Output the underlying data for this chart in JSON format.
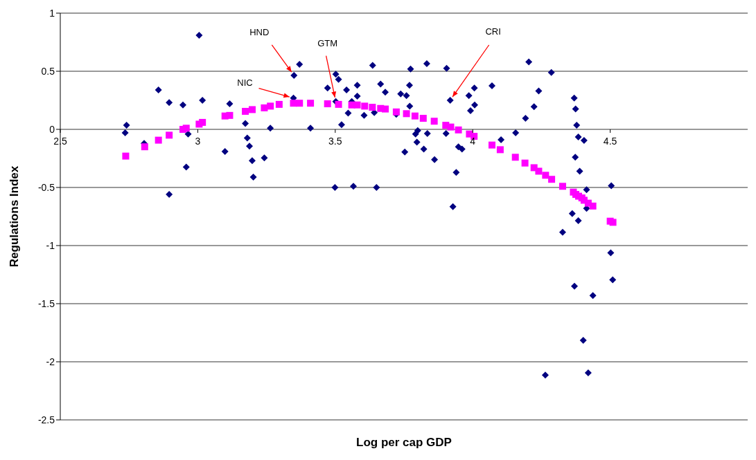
{
  "chart_data": {
    "type": "scatter",
    "xlabel": "Log per cap GDP",
    "ylabel": "Regulations Index",
    "xlim": [
      2.5,
      5
    ],
    "xticks": [
      2.5,
      3,
      3.5,
      4,
      4.5
    ],
    "ylim": [
      -2.5,
      1
    ],
    "yticks": [
      -2.5,
      -2,
      -1.5,
      -1,
      -0.5,
      0,
      0.5,
      1
    ],
    "grid": "y",
    "legend": false,
    "series": [
      {
        "marker": "diamond",
        "color": "#000080",
        "x": [
          2.736,
          2.741,
          2.805,
          2.857,
          2.896,
          2.896,
          2.946,
          2.958,
          2.965,
          3.005,
          3.017,
          3.099,
          3.116,
          3.173,
          3.18,
          3.188,
          3.198,
          3.202,
          3.242,
          3.264,
          3.35,
          3.37,
          3.348,
          3.41,
          3.636,
          3.502,
          3.512,
          3.472,
          3.541,
          3.58,
          3.58,
          3.665,
          3.682,
          3.502,
          3.56,
          3.547,
          3.605,
          3.642,
          3.523,
          3.774,
          3.833,
          3.905,
          3.77,
          3.738,
          3.759,
          3.771,
          3.722,
          3.918,
          3.986,
          4.006,
          3.992,
          4.007,
          4.07,
          4.204,
          3.8,
          3.792,
          3.835,
          3.903,
          3.797,
          3.822,
          3.753,
          3.861,
          3.948,
          3.961,
          3.94,
          3.499,
          3.566,
          3.65,
          4.103,
          4.156,
          4.192,
          4.286,
          4.24,
          4.223,
          4.369,
          4.374,
          4.378,
          4.384,
          4.405,
          4.373,
          4.389,
          3.928,
          4.414,
          4.414,
          4.504,
          4.362,
          4.384,
          4.327,
          4.502,
          4.509,
          4.37,
          4.437,
          4.402,
          4.264,
          4.42
        ],
        "values": [
          -0.03,
          0.035,
          -0.12,
          0.34,
          0.23,
          -0.56,
          0.21,
          -0.325,
          -0.04,
          0.81,
          0.25,
          -0.19,
          0.22,
          0.05,
          -0.075,
          -0.145,
          -0.27,
          -0.41,
          -0.245,
          0.01,
          0.465,
          0.56,
          0.27,
          0.01,
          0.55,
          0.475,
          0.43,
          0.355,
          0.34,
          0.38,
          0.285,
          0.39,
          0.32,
          0.24,
          0.24,
          0.14,
          0.12,
          0.145,
          0.04,
          0.52,
          0.565,
          0.525,
          0.38,
          0.305,
          0.29,
          0.2,
          0.13,
          0.25,
          0.29,
          0.355,
          0.16,
          0.21,
          0.375,
          0.58,
          -0.01,
          -0.04,
          -0.035,
          -0.035,
          -0.11,
          -0.17,
          -0.195,
          -0.26,
          -0.15,
          -0.17,
          -0.37,
          -0.5,
          -0.49,
          -0.5,
          -0.09,
          -0.03,
          0.095,
          0.49,
          0.33,
          0.195,
          0.27,
          0.175,
          0.035,
          -0.065,
          -0.095,
          -0.24,
          -0.36,
          -0.665,
          -0.52,
          -0.68,
          -0.485,
          -0.725,
          -0.785,
          -0.885,
          -1.063,
          -1.295,
          -1.35,
          -1.43,
          -1.815,
          -2.115,
          -2.095
        ]
      },
      {
        "marker": "square",
        "color": "#ff00ff",
        "x": [
          2.738,
          2.807,
          2.857,
          2.896,
          2.946,
          2.958,
          3.005,
          3.017,
          3.099,
          3.116,
          3.173,
          3.198,
          3.242,
          3.264,
          3.296,
          3.348,
          3.37,
          3.41,
          3.472,
          3.512,
          3.56,
          3.58,
          3.607,
          3.635,
          3.665,
          3.682,
          3.722,
          3.759,
          3.79,
          3.82,
          3.86,
          3.902,
          3.92,
          3.948,
          3.988,
          4.005,
          4.07,
          4.1,
          4.155,
          4.19,
          4.223,
          4.24,
          4.265,
          4.287,
          4.327,
          4.366,
          4.375,
          4.385,
          4.397,
          4.405,
          4.42,
          4.437,
          4.5,
          4.51
        ],
        "values": [
          -0.23,
          -0.15,
          -0.093,
          -0.05,
          0,
          0.01,
          0.045,
          0.06,
          0.115,
          0.12,
          0.155,
          0.17,
          0.185,
          0.2,
          0.215,
          0.225,
          0.225,
          0.225,
          0.22,
          0.215,
          0.21,
          0.21,
          0.2,
          0.19,
          0.18,
          0.175,
          0.15,
          0.135,
          0.115,
          0.095,
          0.07,
          0.035,
          0.02,
          -0.005,
          -0.04,
          -0.06,
          -0.135,
          -0.175,
          -0.24,
          -0.29,
          -0.33,
          -0.36,
          -0.395,
          -0.43,
          -0.49,
          -0.54,
          -0.56,
          -0.575,
          -0.59,
          -0.61,
          -0.635,
          -0.66,
          -0.79,
          -0.8
        ]
      }
    ],
    "annotations": [
      {
        "text": "HND",
        "x": 3.35,
        "y": 0.465
      },
      {
        "text": "GTM",
        "x": 3.502,
        "y": 0.24
      },
      {
        "text": "NIC",
        "x": 3.348,
        "y": 0.27
      },
      {
        "text": "CRI",
        "x": 3.918,
        "y": 0.25
      }
    ]
  }
}
